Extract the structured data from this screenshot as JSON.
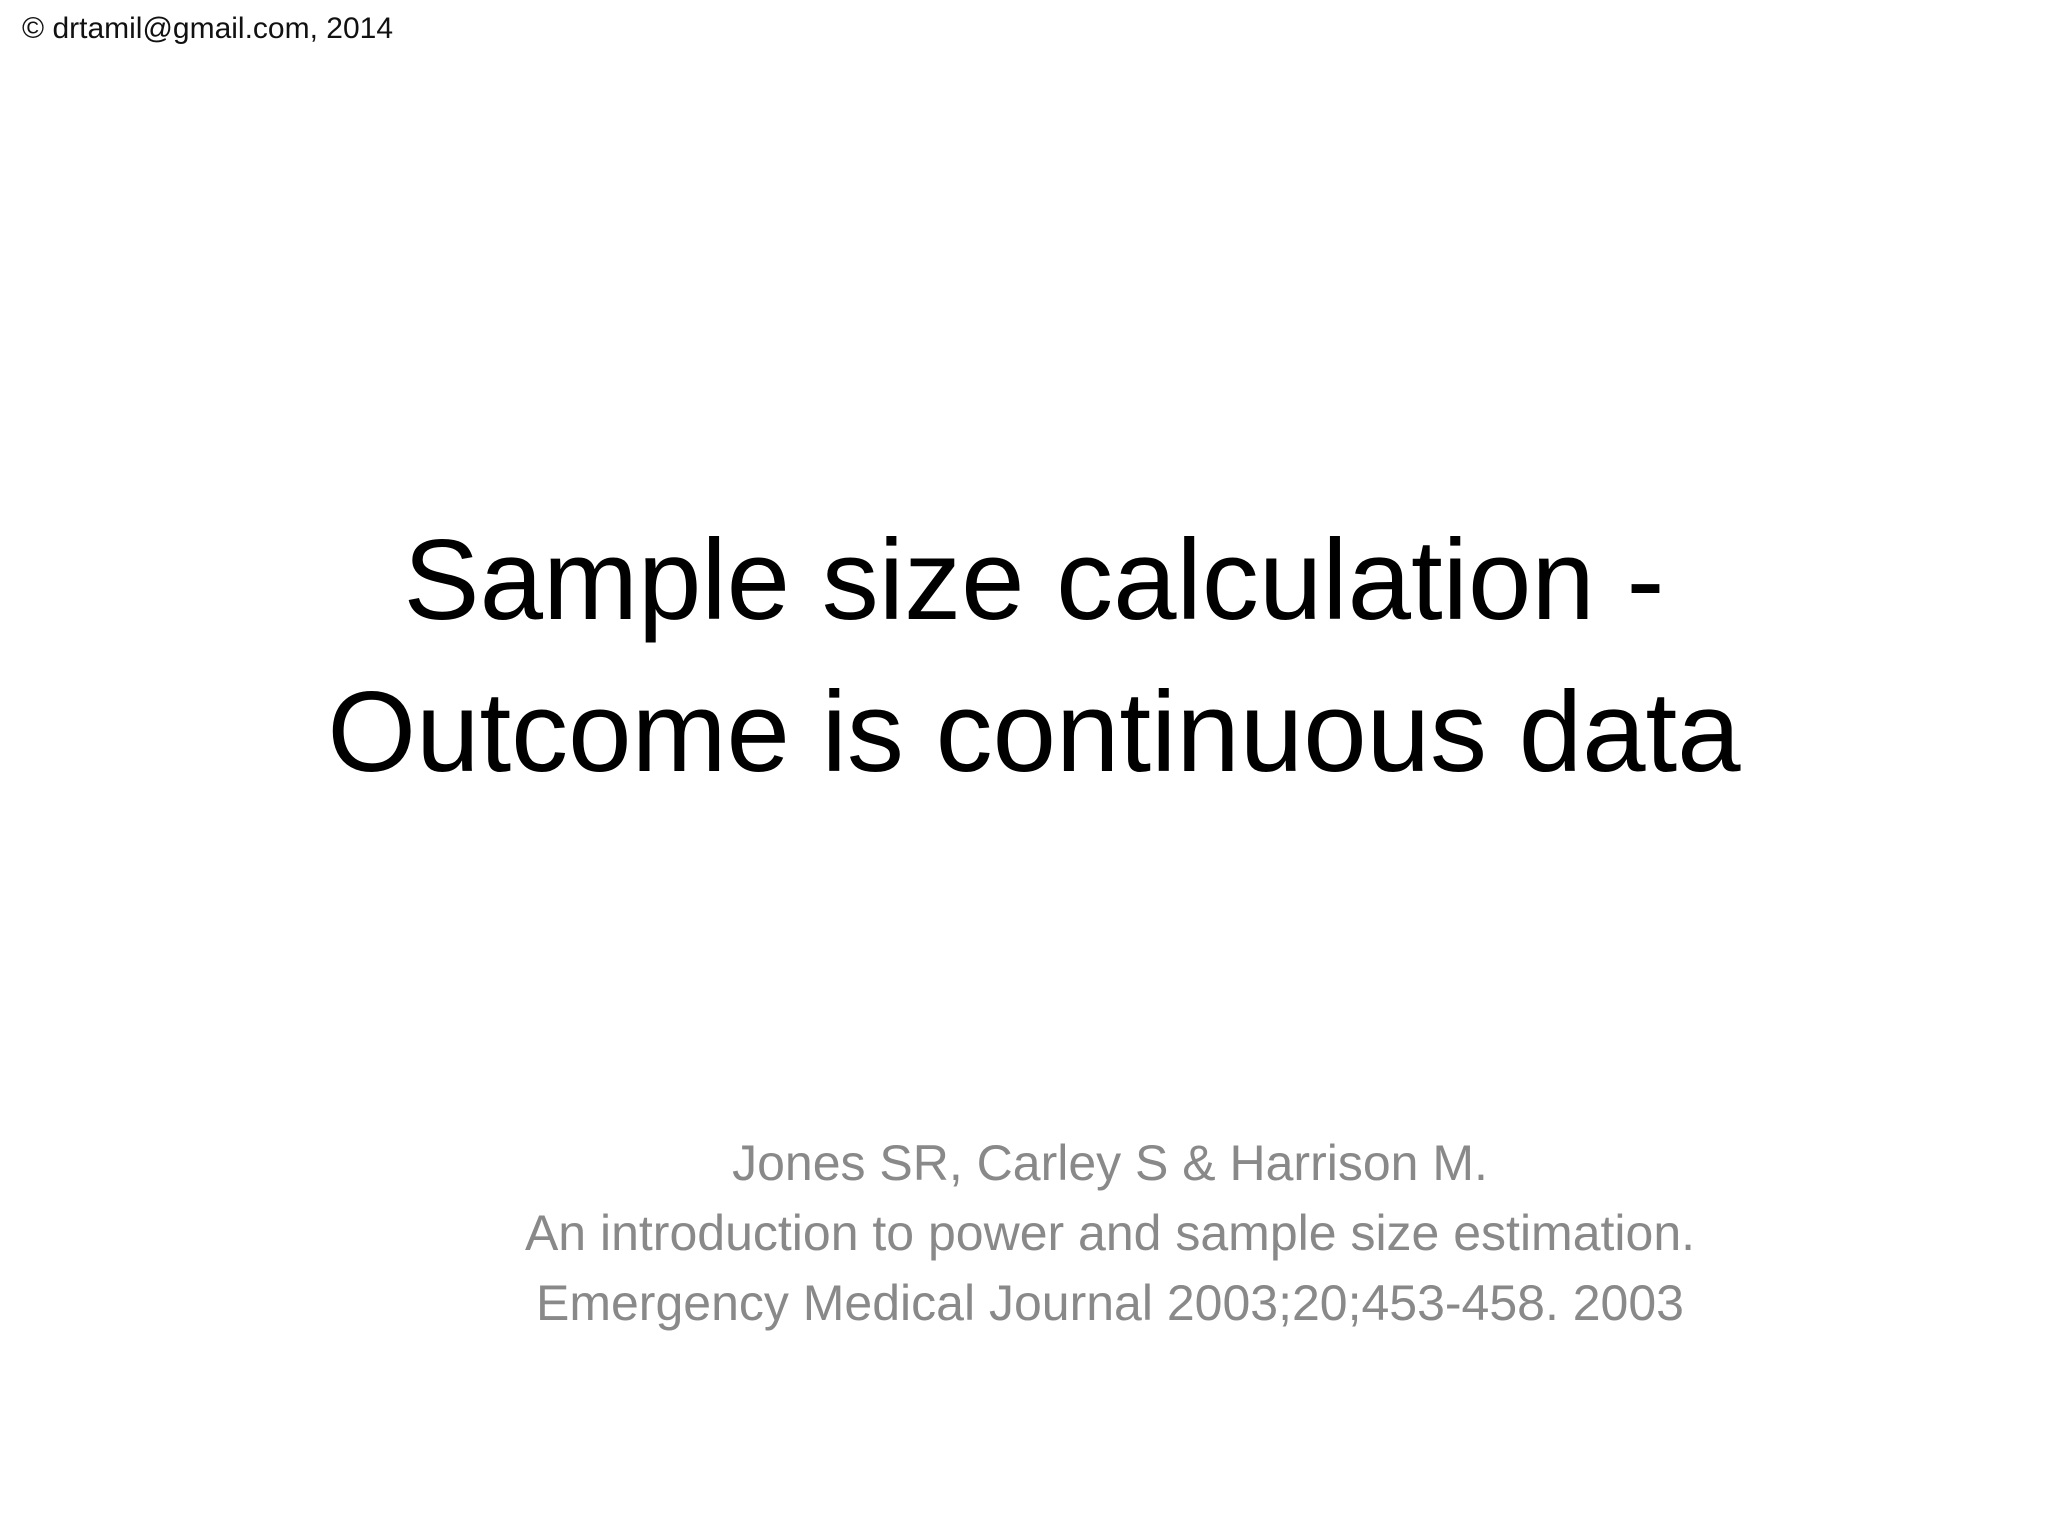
{
  "copyright": "© drtamil@gmail.com, 2014",
  "title": {
    "line1": "Sample size calculation -",
    "line2": "Outcome is continuous data"
  },
  "subtitle": {
    "line1": "Jones SR, Carley S & Harrison M.",
    "line2": "An introduction to power and sample size estimation.",
    "line3": "Emergency Medical Journal 2003;20;453-458. 2003"
  },
  "colors": {
    "title": "#000000",
    "subtitle": "#898989"
  }
}
